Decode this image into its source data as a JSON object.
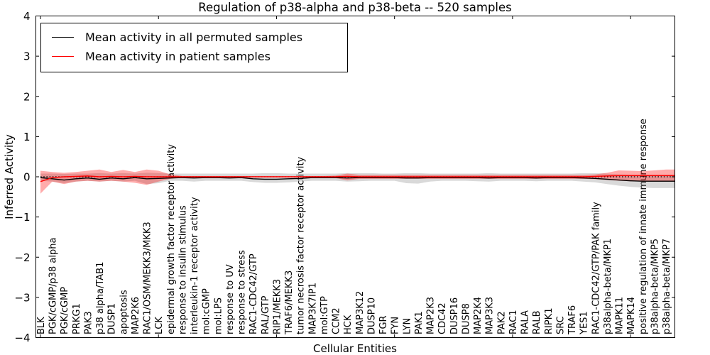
{
  "legend": [
    {
      "label": "Mean activity in all permuted samples",
      "color": "#000000"
    },
    {
      "label": "Mean activity in patient samples",
      "color": "#ff0000"
    }
  ],
  "chart_data": {
    "type": "line",
    "title": "Regulation of p38-alpha and p38-beta -- 520 samples",
    "xlabel": "Cellular Entities",
    "ylabel": "Inferred Activity",
    "ylim": [
      -4,
      4
    ],
    "grid": false,
    "legend_position": "upper left",
    "zero_line": {
      "style": "dotted",
      "color": "#000000",
      "y": 0
    },
    "yticks": [
      {
        "value": -4,
        "label": "−4"
      },
      {
        "value": -3,
        "label": "−3"
      },
      {
        "value": -2,
        "label": "−2"
      },
      {
        "value": -1,
        "label": "−1"
      },
      {
        "value": 0,
        "label": "0"
      },
      {
        "value": 1,
        "label": "1"
      },
      {
        "value": 2,
        "label": "2"
      },
      {
        "value": 3,
        "label": "3"
      },
      {
        "value": 4,
        "label": "4"
      }
    ],
    "xtick_indices": [
      0,
      10,
      20,
      30,
      40,
      50
    ],
    "categories": [
      "BLK",
      "PGK/cGMP/p38 alpha",
      "PGK/cGMP",
      "PRKG1",
      "PAK3",
      "p38 alpha/TAB1",
      "DUSP1",
      "apoptosis",
      "MAP2K6",
      "RAC1/OSM/MEKK3/MKK3",
      "LCK",
      "epidermal growth factor receptor activity",
      "response to insulin stimulus",
      "interleukin-1 receptor activity",
      "mol:cGMP",
      "mol:LPS",
      "response to UV",
      "response to stress",
      "RAC1-CDC42/GTP",
      "RAL/GTP",
      "RIP1/MEKK3",
      "TRAF6/MEKK3",
      "tumor necrosis factor receptor activity",
      "MAP3K7IP1",
      "mol:GTP",
      "CCM2",
      "HCK",
      "MAP3K12",
      "DUSP10",
      "FGR",
      "FYN",
      "LYN",
      "PAK1",
      "MAP2K3",
      "CDC42",
      "DUSP16",
      "DUSP8",
      "MAP2K4",
      "MAP3K3",
      "PAK2",
      "RAC1",
      "RALA",
      "RALB",
      "RIPK1",
      "SRC",
      "TRAF6",
      "YES1",
      "RAC1-CDC42/GTP/PAK family",
      "p38alpha-beta/MKP1",
      "MAPK11",
      "MAPK14",
      "positive regulation of innate immune response",
      "p38alpha-beta/MKP5",
      "p38alpha-beta/MKP7"
    ],
    "series": [
      {
        "name": "Mean activity in all permuted samples",
        "color": "#000000",
        "values": [
          -0.02,
          -0.05,
          -0.08,
          -0.05,
          -0.03,
          -0.06,
          -0.03,
          -0.05,
          -0.02,
          -0.05,
          -0.04,
          -0.03,
          -0.02,
          -0.03,
          -0.02,
          -0.02,
          -0.03,
          -0.02,
          -0.05,
          -0.06,
          -0.06,
          -0.05,
          -0.04,
          -0.02,
          -0.02,
          -0.02,
          -0.03,
          -0.02,
          -0.02,
          -0.02,
          -0.02,
          -0.03,
          -0.03,
          -0.02,
          -0.02,
          -0.02,
          -0.02,
          -0.02,
          -0.03,
          -0.02,
          -0.02,
          -0.02,
          -0.03,
          -0.02,
          -0.02,
          -0.02,
          -0.03,
          -0.04,
          -0.06,
          -0.08,
          -0.1,
          -0.11,
          -0.11,
          -0.11
        ]
      },
      {
        "name": "Mean activity in patient samples",
        "color": "#ff0000",
        "values": [
          -0.12,
          -0.02,
          0,
          0.01,
          0.02,
          0,
          0.01,
          0,
          0.01,
          0,
          0,
          0,
          0,
          0,
          0,
          0,
          0,
          0,
          0,
          0,
          0,
          0,
          0,
          0,
          0,
          0,
          0.01,
          0,
          0,
          0,
          0,
          0,
          0,
          0,
          0,
          0,
          0,
          0,
          0,
          0,
          0,
          0,
          0,
          0,
          0,
          0,
          0,
          0.01,
          0.02,
          0.03,
          0.03,
          0.03,
          0.03,
          0.03
        ]
      }
    ],
    "bands": [
      {
        "name": "permuted-samples-range",
        "color": "rgba(128,128,128,0.30)",
        "upper": [
          0.08,
          0.08,
          0.07,
          0.08,
          0.08,
          0.09,
          0.08,
          0.09,
          0.08,
          0.1,
          0.09,
          0.08,
          0.08,
          0.08,
          0.08,
          0.08,
          0.08,
          0.08,
          0.08,
          0.09,
          0.09,
          0.08,
          0.08,
          0.08,
          0.08,
          0.08,
          0.09,
          0.09,
          0.09,
          0.08,
          0.08,
          0.09,
          0.09,
          0.08,
          0.08,
          0.08,
          0.08,
          0.08,
          0.09,
          0.08,
          0.08,
          0.08,
          0.08,
          0.08,
          0.08,
          0.08,
          0.09,
          0.09,
          0.08,
          0.06,
          0.05,
          0.05,
          0.05,
          0.05
        ],
        "lower": [
          -0.1,
          -0.12,
          -0.16,
          -0.12,
          -0.1,
          -0.12,
          -0.1,
          -0.12,
          -0.1,
          -0.18,
          -0.16,
          -0.1,
          -0.1,
          -0.12,
          -0.1,
          -0.1,
          -0.1,
          -0.1,
          -0.13,
          -0.15,
          -0.15,
          -0.14,
          -0.12,
          -0.1,
          -0.1,
          -0.1,
          -0.12,
          -0.11,
          -0.1,
          -0.1,
          -0.1,
          -0.16,
          -0.17,
          -0.12,
          -0.1,
          -0.1,
          -0.1,
          -0.11,
          -0.12,
          -0.1,
          -0.1,
          -0.1,
          -0.11,
          -0.1,
          -0.1,
          -0.1,
          -0.12,
          -0.14,
          -0.18,
          -0.22,
          -0.25,
          -0.27,
          -0.28,
          -0.28
        ]
      },
      {
        "name": "patient-samples-range",
        "color": "rgba(255,0,0,0.33)",
        "upper": [
          0.15,
          0.12,
          0.1,
          0.12,
          0.15,
          0.18,
          0.12,
          0.17,
          0.12,
          0.18,
          0.15,
          0.06,
          0.02,
          0.02,
          0.02,
          0.02,
          0.02,
          0.02,
          0.02,
          0.02,
          0.02,
          0.02,
          0.02,
          0.02,
          0.02,
          0.03,
          0.08,
          0.05,
          0.05,
          0.05,
          0.05,
          0.05,
          0.05,
          0.05,
          0.05,
          0.05,
          0.05,
          0.05,
          0.05,
          0.05,
          0.05,
          0.05,
          0.05,
          0.05,
          0.05,
          0.05,
          0.05,
          0.06,
          0.1,
          0.16,
          0.15,
          0.14,
          0.16,
          0.18
        ],
        "lower": [
          -0.42,
          -0.12,
          -0.18,
          -0.12,
          -0.1,
          -0.12,
          -0.1,
          -0.12,
          -0.15,
          -0.2,
          -0.12,
          -0.05,
          -0.01,
          -0.01,
          -0.01,
          -0.01,
          -0.01,
          -0.01,
          -0.01,
          -0.01,
          -0.01,
          -0.01,
          -0.01,
          -0.01,
          -0.01,
          -0.03,
          -0.09,
          -0.05,
          -0.05,
          -0.05,
          -0.05,
          -0.05,
          -0.05,
          -0.05,
          -0.05,
          -0.05,
          -0.05,
          -0.05,
          -0.05,
          -0.05,
          -0.05,
          -0.05,
          -0.05,
          -0.05,
          -0.05,
          -0.05,
          -0.05,
          -0.06,
          -0.08,
          -0.1,
          -0.11,
          -0.12,
          -0.12,
          -0.12
        ]
      }
    ]
  }
}
